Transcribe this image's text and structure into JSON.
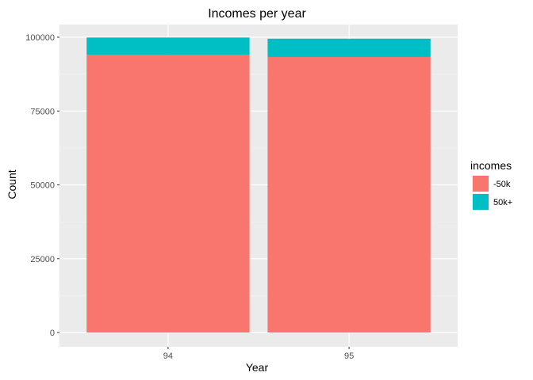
{
  "chart_data": {
    "type": "bar",
    "stacked": true,
    "title": "Incomes per year",
    "xlabel": "Year",
    "ylabel": "Count",
    "categories": [
      "94",
      "95"
    ],
    "series": [
      {
        "name": "-50k",
        "values": [
          94000,
          93300
        ],
        "color": "#f8766d"
      },
      {
        "name": "50k+",
        "values": [
          5900,
          6200
        ],
        "color": "#00bfc4"
      }
    ],
    "ylim": [
      0,
      100000
    ],
    "yticks": [
      0,
      25000,
      50000,
      75000,
      100000
    ],
    "ytick_labels": [
      "0",
      "25000",
      "50000",
      "75000",
      "100000"
    ],
    "grid": true,
    "legend": {
      "title": "incomes",
      "position": "right"
    },
    "panel_background": "#ebebeb"
  }
}
